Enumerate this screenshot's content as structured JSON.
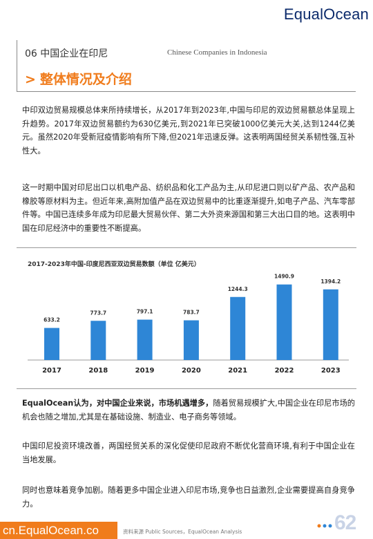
{
  "header": {
    "logo": "EqualOcean",
    "section_title": "06 中国企业在印尼",
    "section_subtitle": "Chinese Companies in Indonesia"
  },
  "heading": {
    "arrow": ">",
    "title": "整体情况及介绍"
  },
  "paragraphs": {
    "p1": "中印双边贸易规模总体来所持续增长，从2017年到2023年,中国与印尼的双边贸易额总体呈现上升趋势。2017年双边贸易额约为630亿美元,到2021年已突破1000亿美元大关,达到1244亿美元。虽然2020年受新冠疫情影响有所下降,但2021年迅速反弹。这表明两国经贸关系韧性强,互补性大。",
    "p2": "这一时期中国对印尼出口以机电产品、纺织品和化工产品为主,从印尼进口则以矿产品、农产品和橡胶等原材料为主。但近年来,高附加值产品在双边贸易中的比重逐渐提升,如电子产品、汽车零部件等。中国已连续多年成为印尼最大贸易伙伴、第二大外资来源国和第三大出口目的地。这表明中国在印尼经济中的重要性不断提高。",
    "p3_bold": "EqualOcean认为，对中国企业来说，市场机遇增多，",
    "p3_rest": "随着贸易规模扩大,中国企业在印尼市场的机会也随之增加,尤其是在基础设施、制造业、电子商务等领域。",
    "p4": "中国印尼投资环境改善，两国经贸关系的深化促使印尼政府不断优化营商环境,有利于中国企业在当地发展。",
    "p5": "同时也意味着竞争加剧。随着更多中国企业进入印尼市场,竞争也日益激烈,企业需要提高自身竞争力。"
  },
  "chart_data": {
    "type": "bar",
    "title": "2017-2023年中国-印度尼西亚双边贸易数额（单位  亿美元）",
    "categories": [
      "2017",
      "2018",
      "2019",
      "2020",
      "2021",
      "2022",
      "2023"
    ],
    "values": [
      633.2,
      773.7,
      797.1,
      783.7,
      1244.3,
      1490.9,
      1394.2
    ],
    "value_labels": [
      "633.2",
      "773.7",
      "797.1",
      "783.7",
      "1244.3",
      "1490.9",
      "1394.2"
    ],
    "bar_color": "#2e86d6",
    "ylim": [
      0,
      1500
    ]
  },
  "footer": {
    "url": "cn.EqualOcean.co",
    "source": "资料来源 Public Sources，EqualOcean Analysis",
    "page_number": "62"
  },
  "colors": {
    "accent": "#f07c1c",
    "brand": "#0b2a6b",
    "bar": "#2e86d6"
  }
}
